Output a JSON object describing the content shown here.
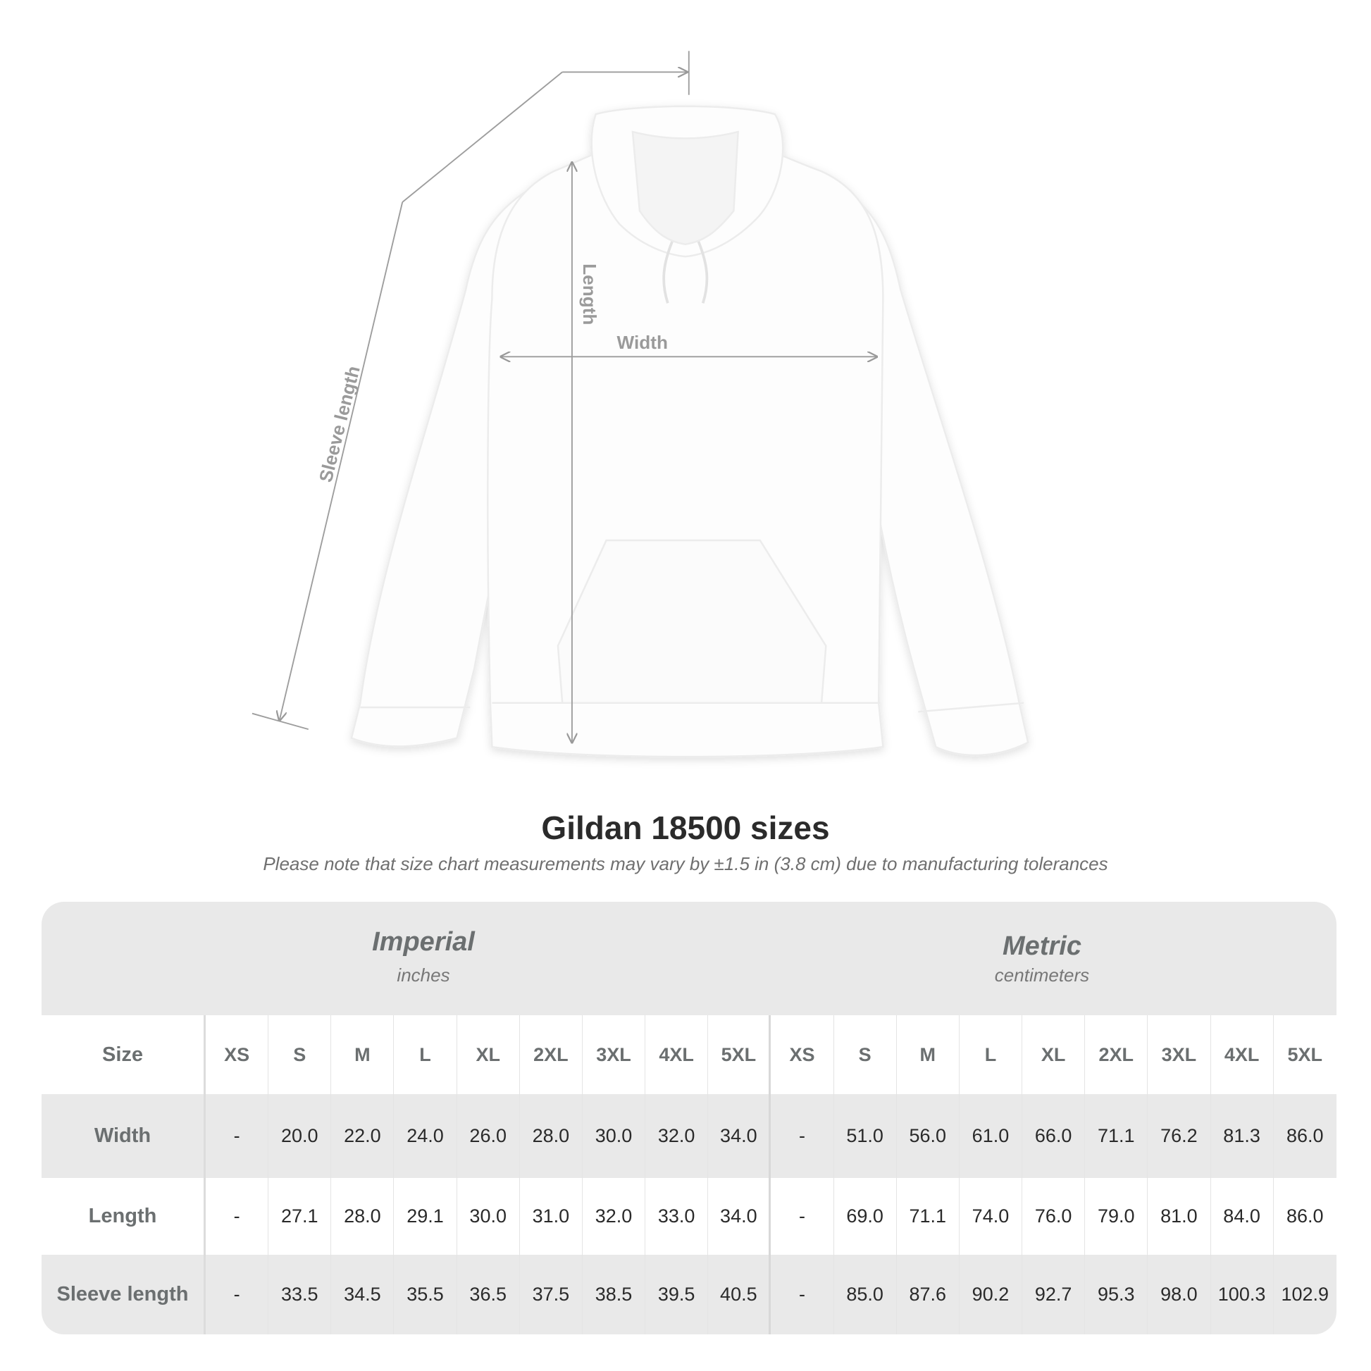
{
  "illustration": {
    "dimension_labels": {
      "sleeve": "Sleeve length",
      "length": "Length",
      "width": "Width"
    }
  },
  "title": "Gildan 18500 sizes",
  "note": "Please note that size chart measurements may vary by ±1.5 in (3.8 cm) due to manufacturing tolerances",
  "table": {
    "imperial": {
      "name": "Imperial",
      "unit": "inches"
    },
    "metric": {
      "name": "Metric",
      "unit": "centimeters"
    },
    "size_label": "Size",
    "sizes": [
      "XS",
      "S",
      "M",
      "L",
      "XL",
      "2XL",
      "3XL",
      "4XL",
      "5XL"
    ],
    "rows": [
      {
        "label": "Width",
        "imperial": [
          "-",
          "20.0",
          "22.0",
          "24.0",
          "26.0",
          "28.0",
          "30.0",
          "32.0",
          "34.0"
        ],
        "metric": [
          "-",
          "51.0",
          "56.0",
          "61.0",
          "66.0",
          "71.1",
          "76.2",
          "81.3",
          "86.0"
        ]
      },
      {
        "label": "Length",
        "imperial": [
          "-",
          "27.1",
          "28.0",
          "29.1",
          "30.0",
          "31.0",
          "32.0",
          "33.0",
          "34.0"
        ],
        "metric": [
          "-",
          "69.0",
          "71.1",
          "74.0",
          "76.0",
          "79.0",
          "81.0",
          "84.0",
          "86.0"
        ]
      },
      {
        "label": "Sleeve length",
        "imperial": [
          "-",
          "33.5",
          "34.5",
          "35.5",
          "36.5",
          "37.5",
          "38.5",
          "39.5",
          "40.5"
        ],
        "metric": [
          "-",
          "85.0",
          "87.6",
          "90.2",
          "92.7",
          "95.3",
          "98.0",
          "100.3",
          "102.9"
        ]
      }
    ]
  },
  "colors": {
    "header_bg": "#e9e9e9",
    "label_text": "#6b6f70",
    "value_text": "#2a2a2a",
    "title_text": "#2b2b2b"
  }
}
